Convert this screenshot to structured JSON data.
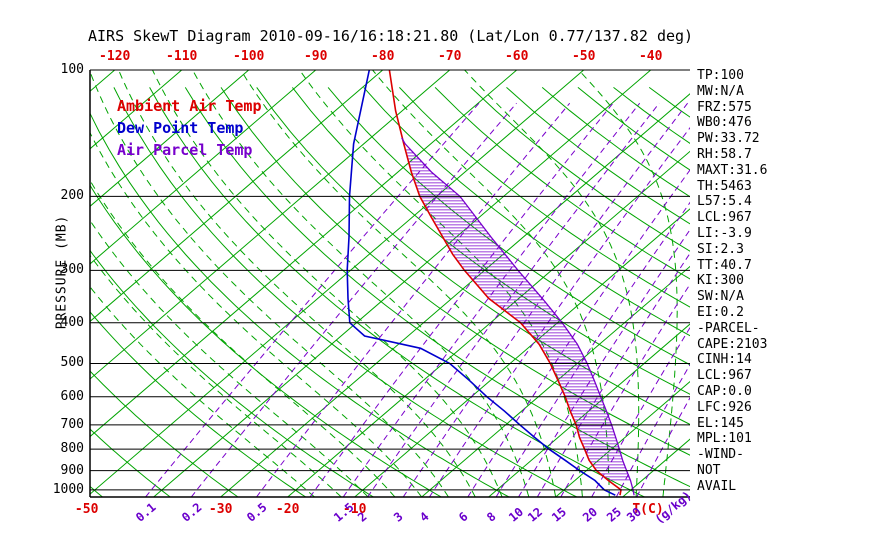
{
  "title": "AIRS SkewT Diagram 2010-09-16/16:18:21.80 (Lat/Lon 0.77/137.82 deg)",
  "legend": [
    {
      "label": "Ambient Air Temp",
      "color": "#dc0000"
    },
    {
      "label": "Dew Point Temp",
      "color": "#0000cd"
    },
    {
      "label": "Air Parcel Temp",
      "color": "#7700cc"
    }
  ],
  "y_axis": {
    "label": "PRESSURE (MB)",
    "ticks": [
      100,
      200,
      300,
      400,
      500,
      600,
      700,
      800,
      900,
      1000
    ]
  },
  "top_axis": {
    "color": "#dc0000",
    "labels": [
      -120,
      -110,
      -100,
      -90,
      -80,
      -70,
      -60,
      -50,
      -40
    ]
  },
  "bottom_axis": {
    "temp_color": "#dc0000",
    "mixing_color": "#6a00cc",
    "temp_labels": [
      {
        "text": "-50",
        "t": -50
      },
      {
        "text": "-30",
        "t": -30
      },
      {
        "text": "-20",
        "t": -20
      },
      {
        "text": "-10",
        "t": -10
      }
    ],
    "temp_unit": "T(C)",
    "mixing_label_values": [
      0.1,
      0.2,
      0.5,
      1.5,
      2,
      3,
      4,
      6,
      8,
      10,
      12,
      15,
      20,
      25,
      30
    ],
    "mixing_unit": "(g/kg)"
  },
  "stats_panel": [
    "TP:100",
    "MW:N/A",
    "FRZ:575",
    "WB0:476",
    "PW:33.72",
    "RH:58.7",
    "MAXT:31.6",
    "TH:5463",
    "L57:5.4",
    "LCL:967",
    "LI:-3.9",
    "SI:2.3",
    "TT:40.7",
    "KI:300",
    "SW:N/A",
    "EI:0.2",
    "-PARCEL-",
    "CAPE:2103",
    "CINH:14",
    "LCL:967",
    "CAP:0.0",
    "LFC:926",
    "EL:145",
    "MPL:101",
    "-WIND-",
    "NOT",
    "AVAIL"
  ],
  "colors": {
    "isotherm_green": "#00a400",
    "mixing_purple": "#7a00cc",
    "pressure_black": "#000000"
  },
  "chart_data": {
    "type": "line",
    "subtype": "skew-t-log-p",
    "title": "AIRS SkewT Diagram 2010-09-16/16:18:21.80",
    "xlabel": "Temperature (C, skewed)",
    "ylabel": "Pressure (MB, log scale)",
    "pressure_mb_range": [
      100,
      1040
    ],
    "isotherms_c": {
      "min": -160,
      "max": 40,
      "step": 10
    },
    "dry_adiabats_theta_k": {
      "min": 223,
      "max": 443,
      "step": 10
    },
    "moist_adiabats_start_c": [
      -16,
      -12,
      -8,
      -4,
      0,
      4,
      8,
      12,
      16,
      20,
      24,
      28,
      32,
      36
    ],
    "mixing_ratio_lines_gkg": [
      0.1,
      0.2,
      0.5,
      1,
      1.5,
      2,
      3,
      4,
      6,
      8,
      10,
      12,
      15,
      20,
      25,
      30
    ],
    "cape_hatch": {
      "top_mb": 155,
      "bottom_mb": 955,
      "color": "#7a00cc"
    },
    "series": [
      {
        "name": "Ambient Air Temp",
        "color": "#dc0000",
        "width": 1.6,
        "points": [
          [
            100,
            -79
          ],
          [
            125,
            -71
          ],
          [
            150,
            -64
          ],
          [
            175,
            -58
          ],
          [
            200,
            -52.5
          ],
          [
            225,
            -47
          ],
          [
            250,
            -42
          ],
          [
            275,
            -37.5
          ],
          [
            300,
            -33
          ],
          [
            350,
            -24.5
          ],
          [
            400,
            -15.5
          ],
          [
            450,
            -9
          ],
          [
            500,
            -4
          ],
          [
            550,
            0.2
          ],
          [
            600,
            4
          ],
          [
            650,
            7.3
          ],
          [
            700,
            10.5
          ],
          [
            750,
            13.2
          ],
          [
            800,
            16
          ],
          [
            850,
            18.6
          ],
          [
            900,
            21.5
          ],
          [
            950,
            25
          ],
          [
            1000,
            28.5
          ],
          [
            1030,
            29.3
          ]
        ]
      },
      {
        "name": "Dew Point Temp",
        "color": "#0000cd",
        "width": 1.6,
        "points": [
          [
            100,
            -82
          ],
          [
            150,
            -71.5
          ],
          [
            200,
            -63
          ],
          [
            250,
            -56
          ],
          [
            300,
            -50.5
          ],
          [
            350,
            -45.5
          ],
          [
            400,
            -41
          ],
          [
            430,
            -36.5
          ],
          [
            460,
            -26
          ],
          [
            500,
            -19
          ],
          [
            550,
            -13
          ],
          [
            600,
            -7.7
          ],
          [
            650,
            -2.5
          ],
          [
            700,
            2.1
          ],
          [
            750,
            6.5
          ],
          [
            800,
            10.7
          ],
          [
            850,
            15
          ],
          [
            900,
            19
          ],
          [
            950,
            23
          ],
          [
            1000,
            26
          ],
          [
            1030,
            28.6
          ]
        ]
      },
      {
        "name": "Air Parcel Temp",
        "color": "#7700cc",
        "width": 1.3,
        "points": [
          [
            145,
            -65.4
          ],
          [
            150,
            -63.8
          ],
          [
            175,
            -55
          ],
          [
            200,
            -46.5
          ],
          [
            250,
            -34.8
          ],
          [
            300,
            -25
          ],
          [
            350,
            -16.5
          ],
          [
            400,
            -9.3
          ],
          [
            450,
            -3.3
          ],
          [
            500,
            1.5
          ],
          [
            550,
            5.6
          ],
          [
            600,
            9.3
          ],
          [
            650,
            12.7
          ],
          [
            700,
            15.8
          ],
          [
            750,
            18.6
          ],
          [
            800,
            21.2
          ],
          [
            850,
            23.6
          ],
          [
            900,
            26
          ],
          [
            950,
            28.3
          ],
          [
            1000,
            30.3
          ],
          [
            1030,
            31.4
          ]
        ]
      }
    ]
  }
}
